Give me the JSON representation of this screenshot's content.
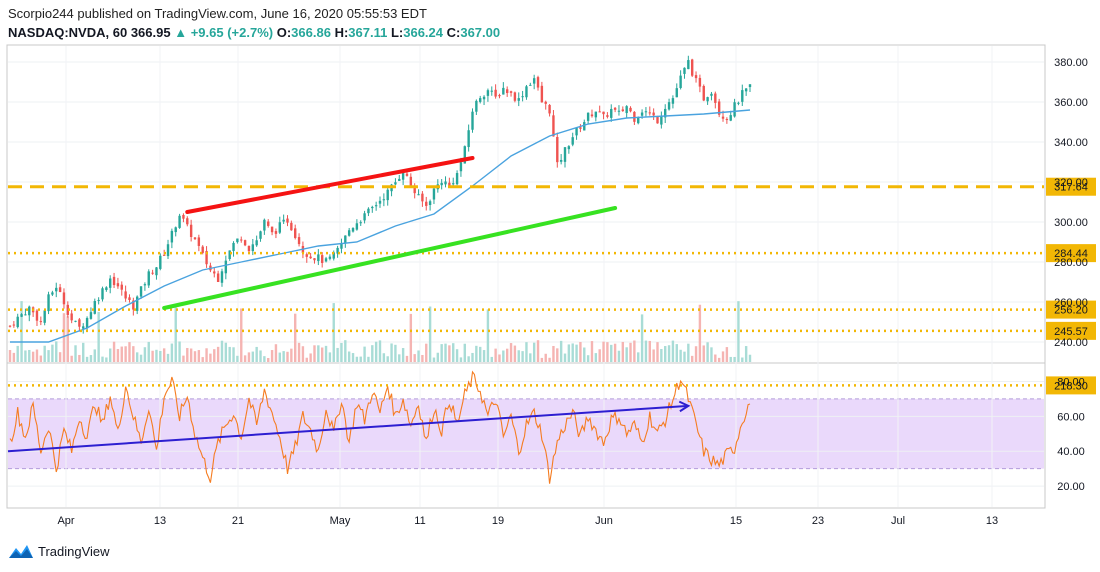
{
  "header": {
    "line1": "Scorpio244 published on TradingView.com, June 16, 2020 05:55:53 EDT",
    "symbol": "NASDAQ:NVDA, 60",
    "last": "366.95",
    "arrow": "▲",
    "change": "+9.65 (+2.7%)",
    "o_label": "O:",
    "o_value": "366.86",
    "h_label": "H:",
    "h_value": "367.11",
    "l_label": "L:",
    "l_value": "366.24",
    "c_label": "C:",
    "c_value": "367.00"
  },
  "footer": {
    "brand": "TradingView"
  },
  "colors": {
    "up": "#26a69a",
    "down": "#ef5350",
    "ma": "#4aa3df",
    "support_line": "#37e221",
    "resistance_line": "#f51313",
    "level": "#f2b705",
    "rsi": "#f57c21",
    "rsi_band": "#ead9fb",
    "rsi_trend": "#2d1fd1"
  },
  "chart_data": [
    {
      "type": "candlestick",
      "x_tick_labels": [
        "Apr",
        "13",
        "21",
        "May",
        "11",
        "19",
        "Jun",
        "15",
        "23",
        "Jul",
        "13"
      ],
      "y_ticks": [
        240,
        260,
        280,
        300,
        320,
        340,
        360,
        380
      ],
      "y_tick_labels": [
        "240.00",
        "260.00",
        "280.00",
        "300.00",
        "320.00",
        "340.00",
        "360.00",
        "380.00"
      ],
      "ylim": [
        230,
        388
      ],
      "price_path": [
        [
          0,
          248
        ],
        [
          2,
          252
        ],
        [
          5,
          257
        ],
        [
          8,
          250
        ],
        [
          10,
          262
        ],
        [
          12,
          268
        ],
        [
          14,
          260
        ],
        [
          16,
          251
        ],
        [
          18,
          247
        ],
        [
          20,
          252
        ],
        [
          22,
          260
        ],
        [
          24,
          266
        ],
        [
          26,
          272
        ],
        [
          28,
          268
        ],
        [
          30,
          262
        ],
        [
          32,
          258
        ],
        [
          34,
          266
        ],
        [
          36,
          274
        ],
        [
          38,
          278
        ],
        [
          40,
          285
        ],
        [
          42,
          294
        ],
        [
          44,
          304
        ],
        [
          46,
          297
        ],
        [
          48,
          291
        ],
        [
          50,
          283
        ],
        [
          52,
          276
        ],
        [
          54,
          272
        ],
        [
          56,
          282
        ],
        [
          58,
          289
        ],
        [
          60,
          293
        ],
        [
          62,
          287
        ],
        [
          64,
          291
        ],
        [
          66,
          300
        ],
        [
          68,
          294
        ],
        [
          70,
          298
        ],
        [
          72,
          301
        ],
        [
          74,
          294
        ],
        [
          76,
          286
        ],
        [
          78,
          283
        ],
        [
          80,
          282
        ],
        [
          82,
          280
        ],
        [
          84,
          283
        ],
        [
          86,
          289
        ],
        [
          88,
          296
        ],
        [
          90,
          300
        ],
        [
          92,
          303
        ],
        [
          94,
          307
        ],
        [
          96,
          311
        ],
        [
          98,
          315
        ],
        [
          100,
          320
        ],
        [
          102,
          326
        ],
        [
          104,
          318
        ],
        [
          106,
          312
        ],
        [
          108,
          308
        ],
        [
          110,
          316
        ],
        [
          112,
          321
        ],
        [
          114,
          318
        ],
        [
          116,
          324
        ],
        [
          118,
          336
        ],
        [
          120,
          356
        ],
        [
          122,
          363
        ],
        [
          124,
          366
        ],
        [
          126,
          362
        ],
        [
          128,
          367
        ],
        [
          130,
          364
        ],
        [
          132,
          361
        ],
        [
          134,
          368
        ],
        [
          136,
          372
        ],
        [
          138,
          360
        ],
        [
          140,
          356
        ],
        [
          142,
          328
        ],
        [
          144,
          336
        ],
        [
          146,
          343
        ],
        [
          148,
          348
        ],
        [
          150,
          353
        ],
        [
          152,
          356
        ],
        [
          154,
          352
        ],
        [
          156,
          356
        ],
        [
          158,
          354
        ],
        [
          160,
          358
        ],
        [
          162,
          352
        ],
        [
          164,
          356
        ],
        [
          166,
          354
        ],
        [
          168,
          351
        ],
        [
          170,
          358
        ],
        [
          172,
          362
        ],
        [
          174,
          372
        ],
        [
          176,
          380
        ],
        [
          178,
          370
        ],
        [
          180,
          362
        ],
        [
          182,
          366
        ],
        [
          184,
          355
        ],
        [
          186,
          352
        ],
        [
          188,
          358
        ],
        [
          190,
          364
        ],
        [
          192,
          367
        ]
      ],
      "sma_path": [
        [
          0,
          240
        ],
        [
          10,
          240
        ],
        [
          20,
          247
        ],
        [
          30,
          258
        ],
        [
          40,
          268
        ],
        [
          50,
          276
        ],
        [
          60,
          280
        ],
        [
          70,
          284
        ],
        [
          80,
          288
        ],
        [
          90,
          290
        ],
        [
          100,
          298
        ],
        [
          110,
          304
        ],
        [
          120,
          318
        ],
        [
          130,
          333
        ],
        [
          140,
          343
        ],
        [
          150,
          349
        ],
        [
          160,
          352
        ],
        [
          170,
          353
        ],
        [
          180,
          354
        ],
        [
          186,
          355
        ],
        [
          192,
          356
        ]
      ],
      "level_lines": [
        {
          "value": 317.64,
          "label": "317.64",
          "style": "dashed"
        },
        {
          "value": 284.44,
          "label": "284.44",
          "style": "dotted"
        },
        {
          "value": 256.2,
          "label": "256.20",
          "style": "dotted"
        },
        {
          "value": 245.57,
          "label": "245.57",
          "style": "dotted"
        },
        {
          "value": 218.3,
          "label": "218.30",
          "style": "dotted"
        }
      ],
      "trend_lines": [
        {
          "name": "resistance",
          "points": [
            [
              46,
              305
            ],
            [
              120,
              332
            ]
          ]
        },
        {
          "name": "support",
          "points": [
            [
              40,
              257
            ],
            [
              157,
              307
            ]
          ]
        }
      ]
    },
    {
      "type": "line",
      "y_tick_labels": [
        "20.00",
        "40.00",
        "60.00",
        "80.00"
      ],
      "y_ticks": [
        20,
        40,
        60,
        80
      ],
      "ylim": [
        8,
        90
      ],
      "band": [
        30,
        70
      ],
      "rsi_path": [
        [
          0,
          45
        ],
        [
          2,
          62
        ],
        [
          4,
          48
        ],
        [
          6,
          66
        ],
        [
          8,
          40
        ],
        [
          10,
          55
        ],
        [
          12,
          30
        ],
        [
          14,
          52
        ],
        [
          16,
          40
        ],
        [
          18,
          60
        ],
        [
          20,
          48
        ],
        [
          22,
          68
        ],
        [
          24,
          55
        ],
        [
          26,
          72
        ],
        [
          28,
          50
        ],
        [
          30,
          78
        ],
        [
          32,
          60
        ],
        [
          34,
          45
        ],
        [
          36,
          66
        ],
        [
          38,
          40
        ],
        [
          40,
          72
        ],
        [
          42,
          80
        ],
        [
          44,
          60
        ],
        [
          46,
          72
        ],
        [
          48,
          50
        ],
        [
          50,
          36
        ],
        [
          52,
          25
        ],
        [
          54,
          45
        ],
        [
          56,
          55
        ],
        [
          58,
          62
        ],
        [
          60,
          48
        ],
        [
          62,
          70
        ],
        [
          64,
          55
        ],
        [
          66,
          75
        ],
        [
          68,
          62
        ],
        [
          70,
          48
        ],
        [
          72,
          30
        ],
        [
          74,
          42
        ],
        [
          76,
          60
        ],
        [
          78,
          52
        ],
        [
          80,
          40
        ],
        [
          82,
          65
        ],
        [
          84,
          50
        ],
        [
          86,
          70
        ],
        [
          88,
          45
        ],
        [
          90,
          68
        ],
        [
          92,
          58
        ],
        [
          94,
          75
        ],
        [
          96,
          62
        ],
        [
          98,
          78
        ],
        [
          100,
          60
        ],
        [
          102,
          70
        ],
        [
          104,
          55
        ],
        [
          106,
          68
        ],
        [
          108,
          45
        ],
        [
          110,
          65
        ],
        [
          112,
          52
        ],
        [
          114,
          70
        ],
        [
          116,
          55
        ],
        [
          118,
          72
        ],
        [
          120,
          82
        ],
        [
          122,
          75
        ],
        [
          124,
          60
        ],
        [
          126,
          70
        ],
        [
          128,
          48
        ],
        [
          130,
          60
        ],
        [
          132,
          40
        ],
        [
          134,
          55
        ],
        [
          136,
          62
        ],
        [
          138,
          50
        ],
        [
          140,
          25
        ],
        [
          142,
          45
        ],
        [
          144,
          55
        ],
        [
          146,
          62
        ],
        [
          148,
          48
        ],
        [
          150,
          60
        ],
        [
          152,
          52
        ],
        [
          154,
          45
        ],
        [
          156,
          58
        ],
        [
          158,
          60
        ],
        [
          160,
          50
        ],
        [
          162,
          55
        ],
        [
          164,
          45
        ],
        [
          166,
          60
        ],
        [
          168,
          50
        ],
        [
          170,
          58
        ],
        [
          172,
          70
        ],
        [
          174,
          82
        ],
        [
          176,
          70
        ],
        [
          178,
          55
        ],
        [
          180,
          40
        ],
        [
          182,
          35
        ],
        [
          184,
          32
        ],
        [
          186,
          38
        ],
        [
          188,
          42
        ],
        [
          190,
          58
        ],
        [
          192,
          68
        ]
      ],
      "trend_line": [
        [
          0,
          40
        ],
        [
          176,
          66
        ]
      ]
    }
  ]
}
